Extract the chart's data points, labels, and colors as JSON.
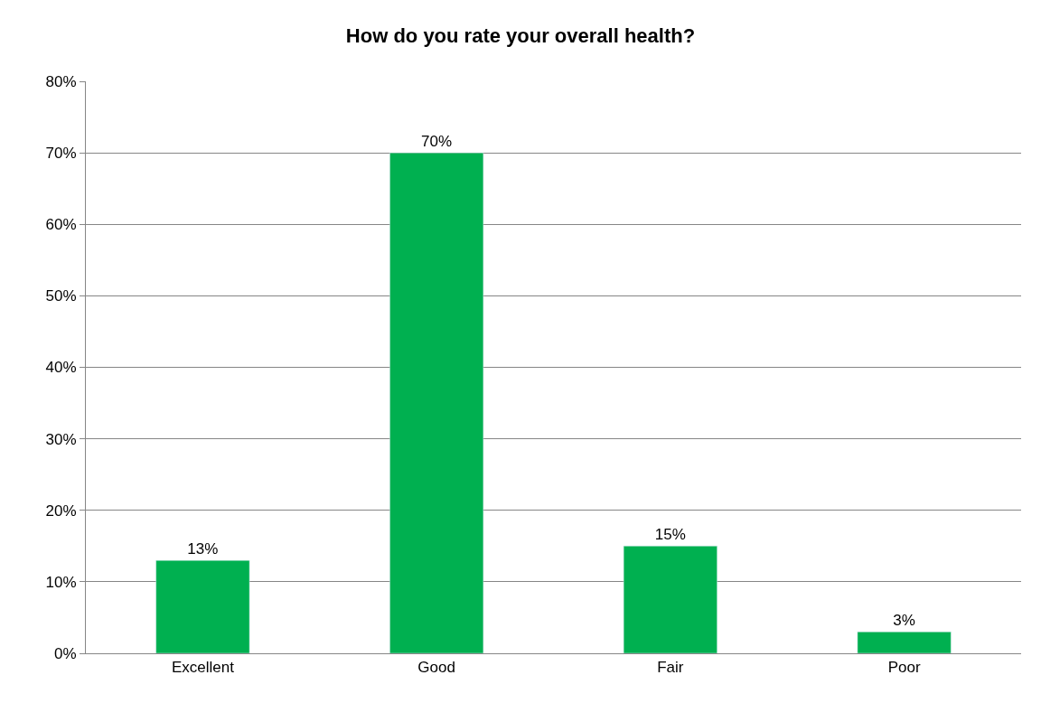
{
  "chart_data": {
    "type": "bar",
    "title": "How do you rate your overall health?",
    "categories": [
      "Excellent",
      "Good",
      "Fair",
      "Poor"
    ],
    "values": [
      13,
      70,
      15,
      3
    ],
    "value_labels": [
      "13%",
      "70%",
      "15%",
      "3%"
    ],
    "color": "#00b050",
    "ylim": [
      0,
      80
    ],
    "yticks": [
      {
        "value": 0,
        "label": "0%"
      },
      {
        "value": 10,
        "label": "10%"
      },
      {
        "value": 20,
        "label": "20%"
      },
      {
        "value": 30,
        "label": "30%"
      },
      {
        "value": 40,
        "label": "40%"
      },
      {
        "value": 50,
        "label": "50%"
      },
      {
        "value": 60,
        "label": "60%"
      },
      {
        "value": 70,
        "label": "70%"
      },
      {
        "value": 80,
        "label": "80%"
      }
    ],
    "grid": "y"
  }
}
